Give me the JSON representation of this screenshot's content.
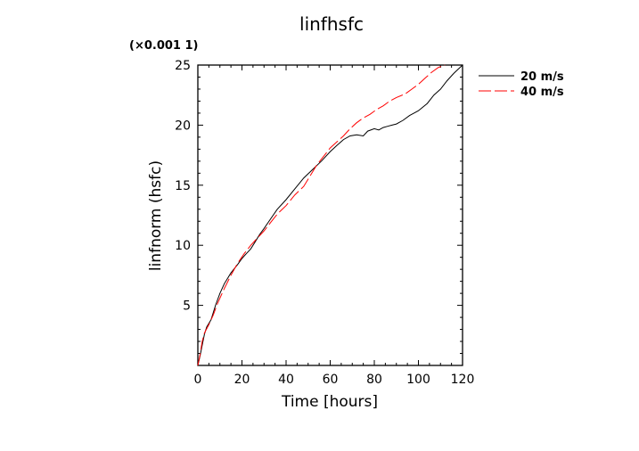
{
  "chart_data": {
    "type": "line",
    "title": "linfhsfc",
    "scale_note": "(×0.001 1)",
    "xlabel": "Time [hours]",
    "ylabel": "linfnorm (hsfc)",
    "xlim": [
      0,
      120
    ],
    "ylim": [
      0,
      25
    ],
    "xticks": [
      0,
      20,
      40,
      60,
      80,
      100,
      120
    ],
    "yticks": [
      5,
      10,
      15,
      20,
      25
    ],
    "grid": false,
    "legend_position": "outside-right-top",
    "series": [
      {
        "name": "20 m/s",
        "color": "#000000",
        "dash": "solid",
        "x": [
          0,
          1,
          2,
          3,
          4,
          6,
          8,
          10,
          12,
          15,
          18,
          20,
          22,
          24,
          26,
          28,
          30,
          33,
          36,
          40,
          44,
          48,
          52,
          56,
          60,
          63,
          66,
          69,
          72,
          75,
          77,
          80,
          82,
          84,
          86,
          88,
          90,
          93,
          96,
          100,
          104,
          107,
          110,
          113,
          116,
          120
        ],
        "y": [
          0.0,
          0.8,
          1.7,
          2.6,
          3.2,
          3.8,
          5.0,
          6.0,
          6.8,
          7.7,
          8.4,
          8.9,
          9.3,
          9.7,
          10.3,
          10.9,
          11.4,
          12.2,
          13.0,
          13.8,
          14.7,
          15.6,
          16.3,
          17.0,
          17.8,
          18.3,
          18.8,
          19.1,
          19.2,
          19.1,
          19.5,
          19.7,
          19.6,
          19.8,
          19.9,
          20.0,
          20.1,
          20.4,
          20.8,
          21.2,
          21.8,
          22.5,
          23.0,
          23.7,
          24.3,
          25.0
        ]
      },
      {
        "name": "40 m/s",
        "color": "#ff0000",
        "dash": "dashed",
        "x": [
          0,
          1,
          2,
          3,
          5,
          7,
          9,
          12,
          15,
          18,
          21,
          24,
          27,
          30,
          33,
          36,
          40,
          44,
          48,
          51,
          54,
          57,
          60,
          63,
          66,
          69,
          72,
          75,
          78,
          81,
          84,
          87,
          90,
          94,
          97,
          100,
          103,
          106,
          109,
          112
        ],
        "y": [
          0.0,
          0.9,
          2.0,
          2.7,
          3.4,
          4.2,
          5.2,
          6.4,
          7.5,
          8.5,
          9.3,
          10.0,
          10.6,
          11.2,
          11.9,
          12.6,
          13.3,
          14.2,
          14.9,
          15.8,
          16.7,
          17.4,
          18.1,
          18.6,
          19.1,
          19.7,
          20.2,
          20.6,
          20.9,
          21.3,
          21.6,
          22.0,
          22.3,
          22.6,
          23.0,
          23.4,
          23.9,
          24.4,
          24.8,
          25.0
        ]
      }
    ]
  }
}
